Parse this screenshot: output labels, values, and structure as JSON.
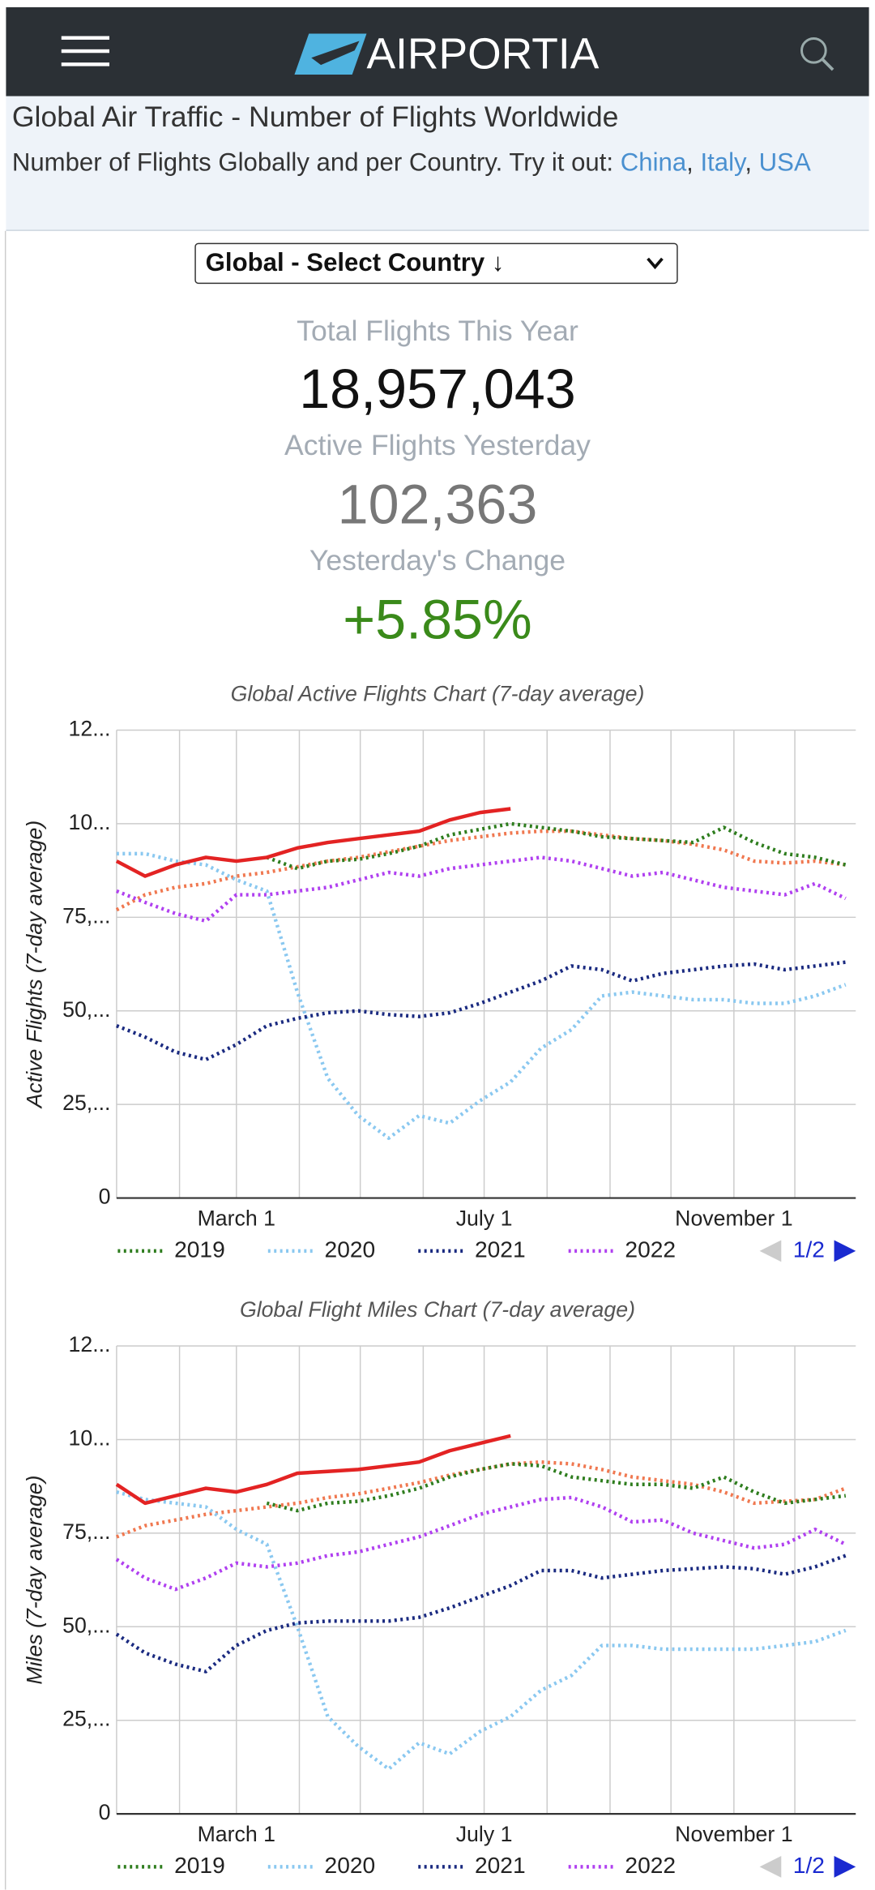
{
  "header": {
    "logo": "AIRPORTIA"
  },
  "page": {
    "title": "Global Air Traffic - Number of Flights Worldwide",
    "subtitle": "Number of Flights Globally and per Country. Try it out:",
    "links": [
      "China",
      "Italy",
      "USA"
    ],
    "link_separator": ","
  },
  "selector": {
    "label": "Global - Select Country ↓"
  },
  "stats": [
    {
      "label": "Total Flights This Year",
      "value": "18,957,043"
    },
    {
      "label": "Active Flights Yesterday",
      "value": "102,363"
    },
    {
      "label": "Yesterday's Change",
      "value": "+5.85%"
    }
  ],
  "chart_data": [
    {
      "type": "line",
      "title": "Global Active Flights Chart (7-day average)",
      "y_label": "Active Flights (7-day average)",
      "x": [
        1,
        15,
        30,
        45,
        60,
        75,
        90,
        105,
        120,
        135,
        150,
        165,
        180,
        195,
        210,
        225,
        240,
        255,
        270,
        285,
        300,
        315,
        330,
        345,
        360
      ],
      "xlim": [
        1,
        365
      ],
      "xticks": [
        {
          "value": 60,
          "label": "March 1"
        },
        {
          "value": 182,
          "label": "July 1"
        },
        {
          "value": 305,
          "label": "November 1"
        }
      ],
      "x_minor_ticks": [
        1,
        32,
        91,
        121,
        152,
        213,
        244,
        274,
        335
      ],
      "ylim": [
        0,
        125000
      ],
      "yticks": [
        0,
        {
          "value": 25000,
          "label": "25,..."
        },
        {
          "value": 50000,
          "label": "50,..."
        },
        {
          "value": 75000,
          "label": "75,..."
        },
        {
          "value": 100000,
          "label": "10..."
        },
        {
          "value": 125000,
          "label": "12..."
        }
      ],
      "grid": true,
      "legend_pager": "1/2",
      "series": [
        {
          "color": "#f07850",
          "line_style": "dotted",
          "values": [
            77000,
            81000,
            83000,
            84000,
            86000,
            87000,
            88500,
            90000,
            91000,
            92500,
            94000,
            95500,
            96500,
            97500,
            98000,
            98000,
            97000,
            96000,
            95500,
            94500,
            93000,
            90000,
            89500,
            90000,
            89000
          ]
        },
        {
          "name": "2019",
          "color": "#2e7d1e",
          "line_style": "dotted",
          "values": [
            null,
            null,
            null,
            null,
            null,
            91000,
            88000,
            90000,
            90500,
            92000,
            94000,
            97000,
            98500,
            100000,
            99000,
            98000,
            96500,
            96000,
            95500,
            95000,
            99000,
            95000,
            92000,
            91000,
            89000
          ]
        },
        {
          "name": "2020",
          "color": "#8ac8f0",
          "line_style": "dotted",
          "values": [
            92000,
            92000,
            90000,
            89000,
            85000,
            82000,
            55000,
            32000,
            22000,
            16000,
            22000,
            20000,
            26000,
            31000,
            40000,
            45000,
            54000,
            55000,
            54000,
            53000,
            53000,
            52000,
            52000,
            54000,
            57000
          ]
        },
        {
          "name": "2021",
          "color": "#1a2a80",
          "line_style": "dotted",
          "values": [
            46000,
            43000,
            39000,
            37000,
            41000,
            46000,
            48000,
            49500,
            50000,
            49000,
            48500,
            49500,
            52000,
            55000,
            58000,
            62000,
            61000,
            58000,
            60000,
            61000,
            62000,
            62500,
            61000,
            62000,
            63000
          ]
        },
        {
          "name": "2022",
          "color": "#b040f0",
          "line_style": "dotted",
          "values": [
            82000,
            79000,
            76000,
            74000,
            81000,
            81000,
            82000,
            83000,
            85000,
            87000,
            86000,
            88000,
            89000,
            90000,
            91000,
            90000,
            88000,
            86000,
            87000,
            85000,
            83000,
            82000,
            81000,
            84000,
            80000
          ]
        },
        {
          "color": "#e32323",
          "line_style": "solid",
          "values": [
            90000,
            86000,
            89000,
            91000,
            90000,
            91000,
            93500,
            95000,
            96000,
            97000,
            98000,
            101000,
            103000,
            104000,
            null,
            null,
            null,
            null,
            null,
            null,
            null,
            null,
            null,
            null,
            null
          ]
        }
      ]
    },
    {
      "type": "line",
      "title": "Global Flight Miles Chart (7-day average)",
      "y_label": "Miles (7-day average)",
      "x": [
        1,
        15,
        30,
        45,
        60,
        75,
        90,
        105,
        120,
        135,
        150,
        165,
        180,
        195,
        210,
        225,
        240,
        255,
        270,
        285,
        300,
        315,
        330,
        345,
        360
      ],
      "xlim": [
        1,
        365
      ],
      "xticks": [
        {
          "value": 60,
          "label": "March 1"
        },
        {
          "value": 182,
          "label": "July 1"
        },
        {
          "value": 305,
          "label": "November 1"
        }
      ],
      "x_minor_ticks": [
        1,
        32,
        91,
        121,
        152,
        213,
        244,
        274,
        335
      ],
      "ylim": [
        0,
        125000
      ],
      "yticks": [
        0,
        {
          "value": 25000,
          "label": "25,..."
        },
        {
          "value": 50000,
          "label": "50,..."
        },
        {
          "value": 75000,
          "label": "75,..."
        },
        {
          "value": 100000,
          "label": "10..."
        },
        {
          "value": 125000,
          "label": "12..."
        }
      ],
      "grid": true,
      "legend_pager": "1/2",
      "series": [
        {
          "color": "#f07850",
          "line_style": "dotted",
          "values": [
            74000,
            77000,
            78500,
            80000,
            81000,
            82000,
            83000,
            84500,
            85500,
            87000,
            88500,
            90500,
            92000,
            93500,
            94000,
            93500,
            92000,
            90000,
            89000,
            88000,
            86000,
            83000,
            83500,
            84000,
            87000
          ]
        },
        {
          "name": "2019",
          "color": "#2e7d1e",
          "line_style": "dotted",
          "values": [
            null,
            null,
            null,
            null,
            null,
            83000,
            81000,
            83000,
            83500,
            85000,
            87000,
            90000,
            92000,
            93500,
            93000,
            90000,
            89000,
            88000,
            88000,
            87000,
            90000,
            86000,
            83000,
            84000,
            85000
          ]
        },
        {
          "name": "2020",
          "color": "#8ac8f0",
          "line_style": "dotted",
          "values": [
            86000,
            84000,
            83000,
            82000,
            76000,
            72000,
            50000,
            26000,
            18000,
            12000,
            19000,
            16000,
            22000,
            26000,
            33000,
            37000,
            45000,
            45000,
            44000,
            44000,
            44000,
            44000,
            45000,
            46000,
            49000
          ]
        },
        {
          "name": "2021",
          "color": "#1a2a80",
          "line_style": "dotted",
          "values": [
            48000,
            43000,
            40000,
            38000,
            45000,
            49000,
            51000,
            51500,
            51500,
            51500,
            52500,
            55000,
            58000,
            61000,
            65000,
            65000,
            63000,
            64000,
            65000,
            65500,
            66000,
            65500,
            64000,
            66000,
            69000
          ]
        },
        {
          "name": "2022",
          "color": "#b040f0",
          "line_style": "dotted",
          "values": [
            68000,
            63000,
            60000,
            63000,
            67000,
            66000,
            67000,
            69000,
            70000,
            72000,
            74000,
            77000,
            80000,
            82000,
            84000,
            84500,
            82000,
            78000,
            78500,
            75000,
            73000,
            71000,
            72000,
            76000,
            72000
          ]
        },
        {
          "color": "#e32323",
          "line_style": "solid",
          "values": [
            88000,
            83000,
            85000,
            87000,
            86000,
            88000,
            91000,
            91500,
            92000,
            93000,
            94000,
            97000,
            99000,
            101000,
            null,
            null,
            null,
            null,
            null,
            null,
            null,
            null,
            null,
            null,
            null
          ]
        }
      ]
    }
  ]
}
